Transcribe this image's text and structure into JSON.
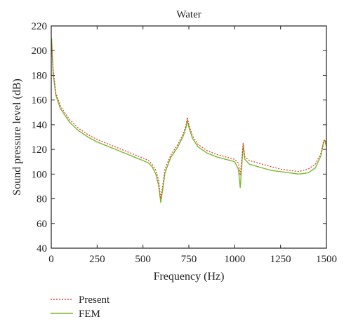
{
  "chart_data": {
    "type": "line",
    "title": "Water",
    "xlabel": "Frequency (Hz)",
    "ylabel": "Sound pressure level (dB)",
    "xlim": [
      0,
      1500
    ],
    "ylim": [
      40,
      220
    ],
    "x_ticks": [
      0,
      250,
      500,
      750,
      1000,
      1250,
      1500
    ],
    "y_ticks": [
      40,
      60,
      80,
      100,
      120,
      140,
      160,
      180,
      200,
      220
    ],
    "grid": false,
    "legend_position": "bottom-left, below plot",
    "series": [
      {
        "name": "Present",
        "color": "#e0443c",
        "style": "dotted",
        "points": [
          [
            2,
            205
          ],
          [
            10,
            185
          ],
          [
            25,
            166
          ],
          [
            50,
            155
          ],
          [
            100,
            144
          ],
          [
            150,
            137
          ],
          [
            200,
            132
          ],
          [
            250,
            128
          ],
          [
            300,
            125
          ],
          [
            350,
            122
          ],
          [
            400,
            119
          ],
          [
            450,
            116
          ],
          [
            500,
            113
          ],
          [
            530,
            111
          ],
          [
            550,
            108
          ],
          [
            570,
            103
          ],
          [
            585,
            95
          ],
          [
            597,
            80
          ],
          [
            607,
            90
          ],
          [
            620,
            104
          ],
          [
            650,
            115
          ],
          [
            690,
            124
          ],
          [
            720,
            133
          ],
          [
            735,
            140
          ],
          [
            742,
            146
          ],
          [
            750,
            140
          ],
          [
            770,
            131
          ],
          [
            800,
            124
          ],
          [
            850,
            119
          ],
          [
            900,
            116
          ],
          [
            950,
            114
          ],
          [
            1000,
            112
          ],
          [
            1020,
            109
          ],
          [
            1030,
            99
          ],
          [
            1040,
            114
          ],
          [
            1046,
            125
          ],
          [
            1055,
            114
          ],
          [
            1080,
            111
          ],
          [
            1150,
            108
          ],
          [
            1200,
            106
          ],
          [
            1250,
            104
          ],
          [
            1300,
            103
          ],
          [
            1350,
            102
          ],
          [
            1400,
            104
          ],
          [
            1440,
            108
          ],
          [
            1470,
            117
          ],
          [
            1485,
            127
          ],
          [
            1492,
            128
          ],
          [
            1500,
            124
          ]
        ]
      },
      {
        "name": "FEM",
        "color": "#7ab929",
        "style": "solid",
        "points": [
          [
            2,
            210
          ],
          [
            10,
            182
          ],
          [
            25,
            164
          ],
          [
            50,
            153
          ],
          [
            100,
            142
          ],
          [
            150,
            135
          ],
          [
            200,
            130
          ],
          [
            250,
            126
          ],
          [
            300,
            123
          ],
          [
            350,
            120
          ],
          [
            400,
            117
          ],
          [
            450,
            114
          ],
          [
            500,
            111
          ],
          [
            530,
            109
          ],
          [
            550,
            106
          ],
          [
            570,
            100
          ],
          [
            585,
            91
          ],
          [
            597,
            77
          ],
          [
            607,
            87
          ],
          [
            620,
            101
          ],
          [
            650,
            113
          ],
          [
            690,
            122
          ],
          [
            720,
            131
          ],
          [
            735,
            138
          ],
          [
            742,
            144
          ],
          [
            750,
            138
          ],
          [
            770,
            129
          ],
          [
            800,
            122
          ],
          [
            850,
            117
          ],
          [
            900,
            114
          ],
          [
            950,
            112
          ],
          [
            1000,
            110
          ],
          [
            1020,
            104
          ],
          [
            1030,
            89
          ],
          [
            1040,
            110
          ],
          [
            1046,
            124
          ],
          [
            1055,
            112
          ],
          [
            1080,
            108
          ],
          [
            1150,
            105
          ],
          [
            1200,
            103
          ],
          [
            1250,
            102
          ],
          [
            1300,
            101
          ],
          [
            1350,
            100
          ],
          [
            1400,
            101
          ],
          [
            1440,
            105
          ],
          [
            1470,
            115
          ],
          [
            1485,
            126
          ],
          [
            1492,
            127
          ],
          [
            1500,
            122
          ]
        ]
      }
    ]
  }
}
